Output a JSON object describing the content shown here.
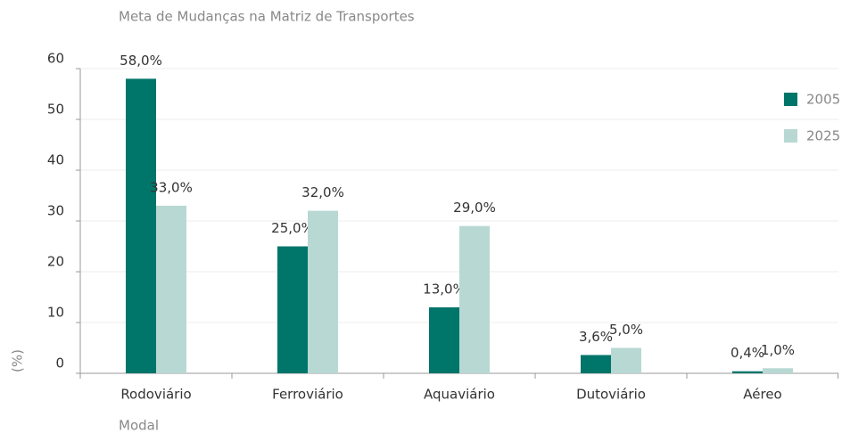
{
  "chart_data": {
    "type": "bar",
    "title": "Meta de Mudanças na Matriz de Transportes",
    "x_label": "Modal",
    "y_label": "(%)",
    "categories": [
      "Rodoviário",
      "Ferroviário",
      "Aquaviário",
      "Dutoviário",
      "Aéreo"
    ],
    "series": [
      {
        "name": "2005",
        "color": "#00756a",
        "values": [
          58.0,
          25.0,
          13.0,
          3.6,
          0.4
        ],
        "value_labels": [
          "58,0%",
          "25,0%",
          "13,0%",
          "3,6%",
          "0,4%"
        ]
      },
      {
        "name": "2025",
        "color": "#b8d8d3",
        "values": [
          33.0,
          32.0,
          29.0,
          5.0,
          1.0
        ],
        "value_labels": [
          "33,0%",
          "32,0%",
          "29,0%",
          "5,0%",
          "1,0%"
        ]
      }
    ],
    "ylim": [
      0,
      60
    ],
    "yticks": [
      0,
      10,
      20,
      30,
      40,
      50,
      60
    ],
    "grid": true,
    "legend": "top-right"
  }
}
